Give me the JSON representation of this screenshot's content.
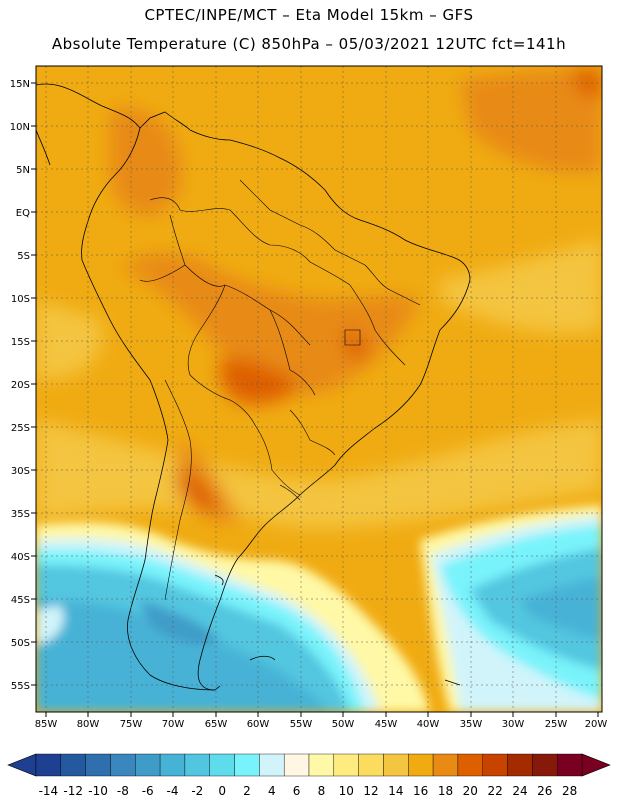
{
  "header": {
    "line1": "CPTEC/INPE/MCT –  Eta Model 15km – GFS",
    "line2": "Absolute Temperature (C) 850hPa – 05/03/2021 12UTC fct=141h"
  },
  "map": {
    "lat_labels": [
      "15N",
      "10N",
      "5N",
      "EQ",
      "5S",
      "10S",
      "15S",
      "20S",
      "25S",
      "30S",
      "35S",
      "40S",
      "45S",
      "50S",
      "55S"
    ],
    "lon_labels": [
      "85W",
      "80W",
      "75W",
      "70W",
      "65W",
      "60W",
      "55W",
      "50W",
      "45W",
      "40W",
      "35W",
      "30W",
      "25W",
      "20W"
    ]
  },
  "colorbar": {
    "labels": [
      "-14",
      "-12",
      "-10",
      "-8",
      "-6",
      "-4",
      "-2",
      "0",
      "2",
      "4",
      "6",
      "8",
      "10",
      "12",
      "14",
      "16",
      "18",
      "20",
      "22",
      "24",
      "26",
      "28"
    ],
    "colors": [
      "#1f3f93",
      "#24599f",
      "#2f6fae",
      "#3a87bd",
      "#3f9cc8",
      "#46b2d6",
      "#52c6e0",
      "#5fdcec",
      "#79f3fb",
      "#d1f4fb",
      "#fff7e3",
      "#fff8a6",
      "#ffec80",
      "#fbdc5e",
      "#f4c541",
      "#f0ab12",
      "#e88a13",
      "#de5f00",
      "#c84200",
      "#a42b00",
      "#86190a",
      "#7a0022"
    ],
    "under_color": "#1f3f93",
    "over_color": "#7a0022"
  }
}
